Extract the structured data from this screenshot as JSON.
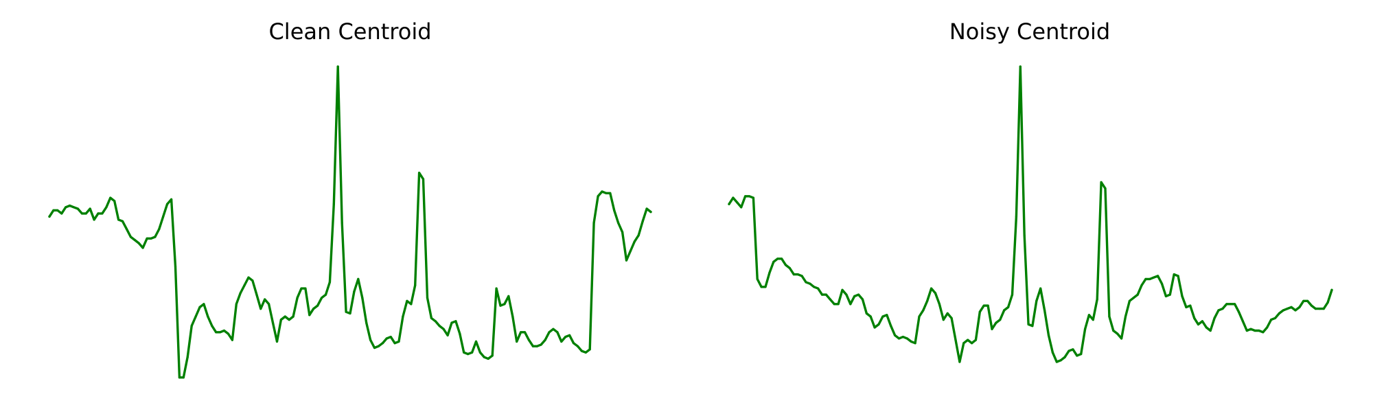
{
  "chart_data": [
    {
      "type": "line",
      "title": "Clean Centroid",
      "xlabel": "",
      "ylabel": "",
      "grid": false,
      "axes_visible": false,
      "xlim": [
        0,
        150
      ],
      "ylim": [
        0,
        1
      ],
      "line_color": "#008000",
      "series": [
        {
          "values": [
            0.52,
            0.54,
            0.54,
            0.53,
            0.55,
            0.555,
            0.55,
            0.545,
            0.53,
            0.53,
            0.545,
            0.51,
            0.53,
            0.53,
            0.55,
            0.58,
            0.57,
            0.51,
            0.505,
            0.48,
            0.455,
            0.445,
            0.435,
            0.42,
            0.45,
            0.45,
            0.455,
            0.48,
            0.52,
            0.56,
            0.575,
            0.36,
            0.005,
            0.005,
            0.07,
            0.17,
            0.2,
            0.23,
            0.24,
            0.2,
            0.17,
            0.15,
            0.15,
            0.155,
            0.145,
            0.125,
            0.24,
            0.275,
            0.3,
            0.325,
            0.315,
            0.27,
            0.225,
            0.255,
            0.24,
            0.18,
            0.12,
            0.19,
            0.2,
            0.19,
            0.2,
            0.26,
            0.29,
            0.29,
            0.205,
            0.225,
            0.235,
            0.26,
            0.27,
            0.31,
            0.56,
            1.0,
            0.5,
            0.215,
            0.21,
            0.28,
            0.32,
            0.26,
            0.18,
            0.125,
            0.1,
            0.105,
            0.115,
            0.13,
            0.135,
            0.115,
            0.12,
            0.2,
            0.25,
            0.24,
            0.3,
            0.66,
            0.64,
            0.26,
            0.195,
            0.185,
            0.17,
            0.16,
            0.14,
            0.18,
            0.185,
            0.145,
            0.085,
            0.08,
            0.085,
            0.12,
            0.085,
            0.07,
            0.065,
            0.075,
            0.29,
            0.235,
            0.24,
            0.265,
            0.2,
            0.12,
            0.15,
            0.15,
            0.125,
            0.105,
            0.105,
            0.11,
            0.125,
            0.15,
            0.16,
            0.15,
            0.12,
            0.135,
            0.14,
            0.115,
            0.105,
            0.09,
            0.085,
            0.095,
            0.5,
            0.585,
            0.6,
            0.595,
            0.595,
            0.54,
            0.5,
            0.47,
            0.38,
            0.41,
            0.44,
            0.46,
            0.505,
            0.545,
            0.535
          ]
        }
      ]
    },
    {
      "type": "line",
      "title": "Noisy Centroid",
      "xlabel": "",
      "ylabel": "",
      "grid": false,
      "axes_visible": false,
      "xlim": [
        0,
        150
      ],
      "ylim": [
        0,
        1
      ],
      "line_color": "#008000",
      "series": [
        {
          "values": [
            0.56,
            0.58,
            0.565,
            0.55,
            0.585,
            0.585,
            0.58,
            0.32,
            0.295,
            0.295,
            0.34,
            0.375,
            0.385,
            0.385,
            0.365,
            0.355,
            0.335,
            0.335,
            0.33,
            0.31,
            0.305,
            0.295,
            0.29,
            0.27,
            0.27,
            0.255,
            0.24,
            0.24,
            0.285,
            0.27,
            0.24,
            0.265,
            0.27,
            0.255,
            0.21,
            0.2,
            0.165,
            0.175,
            0.2,
            0.205,
            0.17,
            0.14,
            0.13,
            0.135,
            0.13,
            0.12,
            0.115,
            0.2,
            0.22,
            0.25,
            0.29,
            0.275,
            0.24,
            0.19,
            0.21,
            0.195,
            0.125,
            0.055,
            0.115,
            0.125,
            0.115,
            0.125,
            0.215,
            0.235,
            0.235,
            0.16,
            0.18,
            0.19,
            0.22,
            0.23,
            0.27,
            0.52,
            1.0,
            0.46,
            0.175,
            0.17,
            0.25,
            0.29,
            0.22,
            0.14,
            0.085,
            0.055,
            0.06,
            0.07,
            0.09,
            0.095,
            0.075,
            0.08,
            0.16,
            0.205,
            0.19,
            0.255,
            0.63,
            0.61,
            0.2,
            0.155,
            0.145,
            0.13,
            0.2,
            0.25,
            0.26,
            0.27,
            0.3,
            0.32,
            0.32,
            0.325,
            0.33,
            0.305,
            0.265,
            0.27,
            0.335,
            0.33,
            0.265,
            0.23,
            0.235,
            0.195,
            0.175,
            0.185,
            0.165,
            0.155,
            0.195,
            0.22,
            0.225,
            0.24,
            0.24,
            0.24,
            0.215,
            0.185,
            0.155,
            0.16,
            0.155,
            0.155,
            0.15,
            0.165,
            0.19,
            0.195,
            0.21,
            0.22,
            0.225,
            0.23,
            0.22,
            0.23,
            0.25,
            0.25,
            0.235,
            0.225,
            0.225,
            0.225,
            0.245,
            0.285
          ]
        }
      ]
    }
  ]
}
